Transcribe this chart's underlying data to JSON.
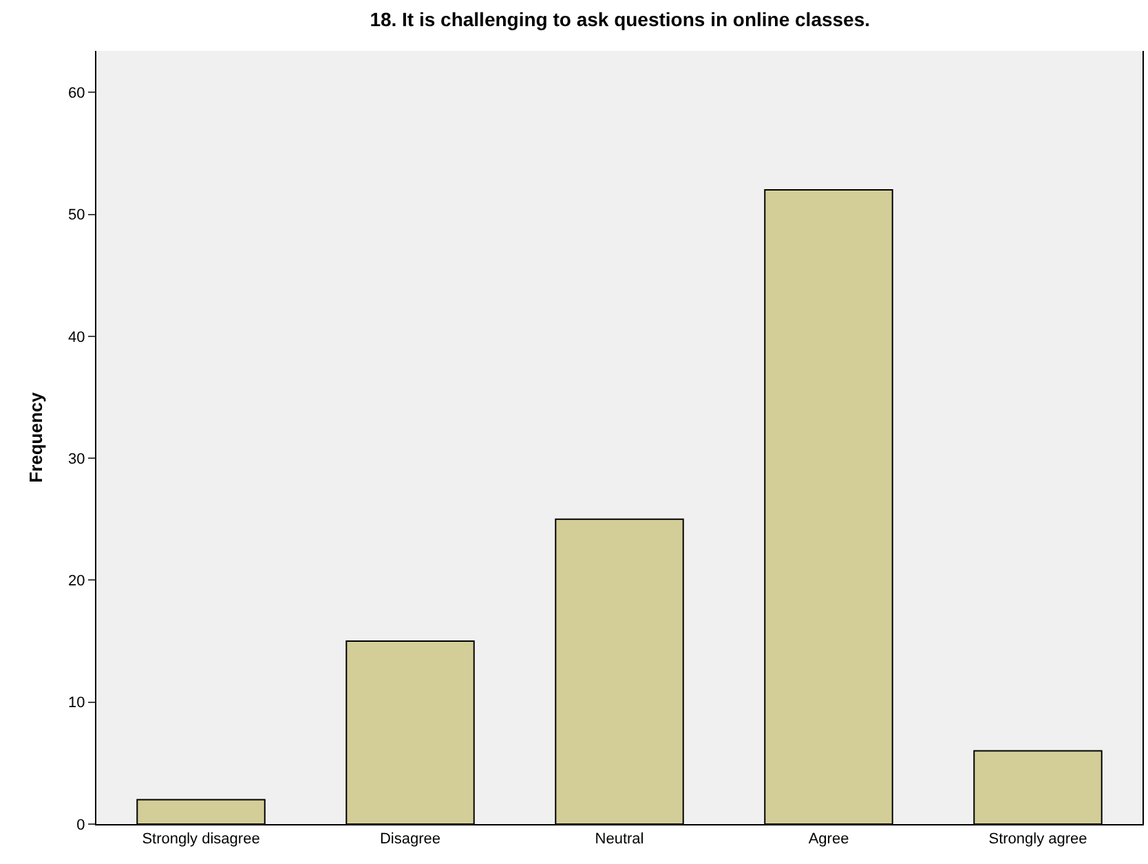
{
  "chart_data": {
    "type": "bar",
    "title": "18. It is challenging to ask questions in online classes.",
    "ylabel": "Frequency",
    "categories": [
      "Strongly disagree",
      "Disagree",
      "Neutral",
      "Agree",
      "Strongly agree"
    ],
    "values": [
      2,
      15,
      25,
      52,
      6
    ],
    "color": "#d3ce97",
    "ylim": [
      0,
      63.4
    ],
    "yticks": [
      0,
      10,
      20,
      30,
      40,
      50,
      60
    ]
  }
}
